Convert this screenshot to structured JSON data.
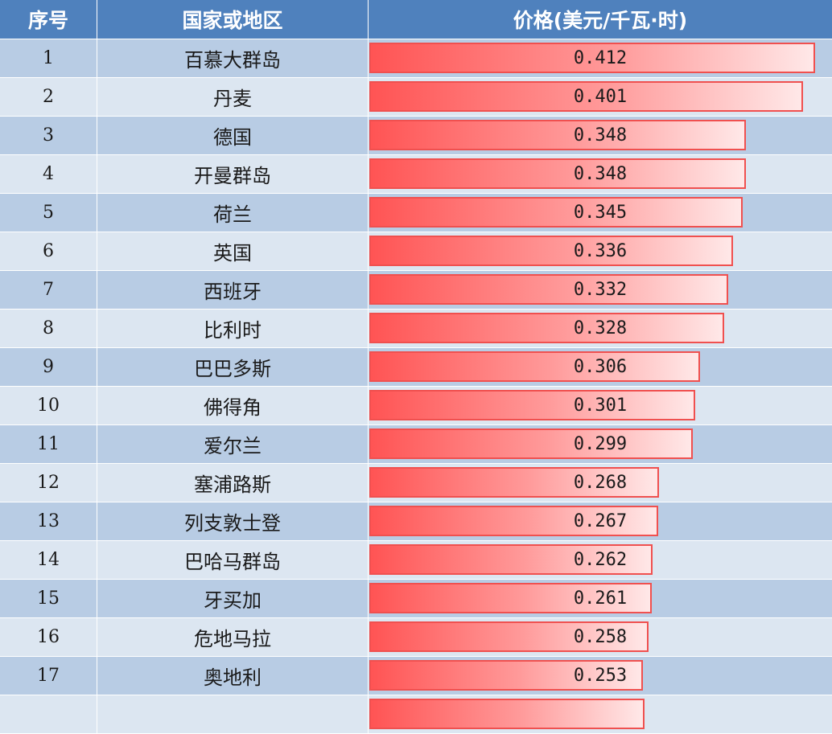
{
  "header": {
    "col_index": "序号",
    "col_country": "国家或地区",
    "col_price": "价格(美元/千瓦·时)"
  },
  "chart_data": {
    "type": "bar",
    "orientation": "horizontal",
    "columns": [
      "序号",
      "国家或地区",
      "价格(美元/千瓦·时)"
    ],
    "xlim": [
      0,
      0.412
    ],
    "rows": [
      {
        "rank": "1",
        "name": "百慕大群岛",
        "value": "0.412"
      },
      {
        "rank": "2",
        "name": "丹麦",
        "value": "0.401"
      },
      {
        "rank": "3",
        "name": "德国",
        "value": "0.348"
      },
      {
        "rank": "4",
        "name": "开曼群岛",
        "value": "0.348"
      },
      {
        "rank": "5",
        "name": "荷兰",
        "value": "0.345"
      },
      {
        "rank": "6",
        "name": "英国",
        "value": "0.336"
      },
      {
        "rank": "7",
        "name": "西班牙",
        "value": "0.332"
      },
      {
        "rank": "8",
        "name": "比利时",
        "value": "0.328"
      },
      {
        "rank": "9",
        "name": "巴巴多斯",
        "value": "0.306"
      },
      {
        "rank": "10",
        "name": "佛得角",
        "value": "0.301"
      },
      {
        "rank": "11",
        "name": "爱尔兰",
        "value": "0.299"
      },
      {
        "rank": "12",
        "name": "塞浦路斯",
        "value": "0.268"
      },
      {
        "rank": "13",
        "name": "列支敦士登",
        "value": "0.267"
      },
      {
        "rank": "14",
        "name": "巴哈马群岛",
        "value": "0.262"
      },
      {
        "rank": "15",
        "name": "牙买加",
        "value": "0.261"
      },
      {
        "rank": "16",
        "name": "危地马拉",
        "value": "0.258"
      },
      {
        "rank": "17",
        "name": "奥地利",
        "value": "0.253"
      }
    ],
    "colors": {
      "header_bg": "#4f81bd",
      "row_odd": "#b8cce4",
      "row_even": "#dce6f1",
      "bar_border": "#f0504f",
      "bar_fill": "#ff5454"
    }
  }
}
